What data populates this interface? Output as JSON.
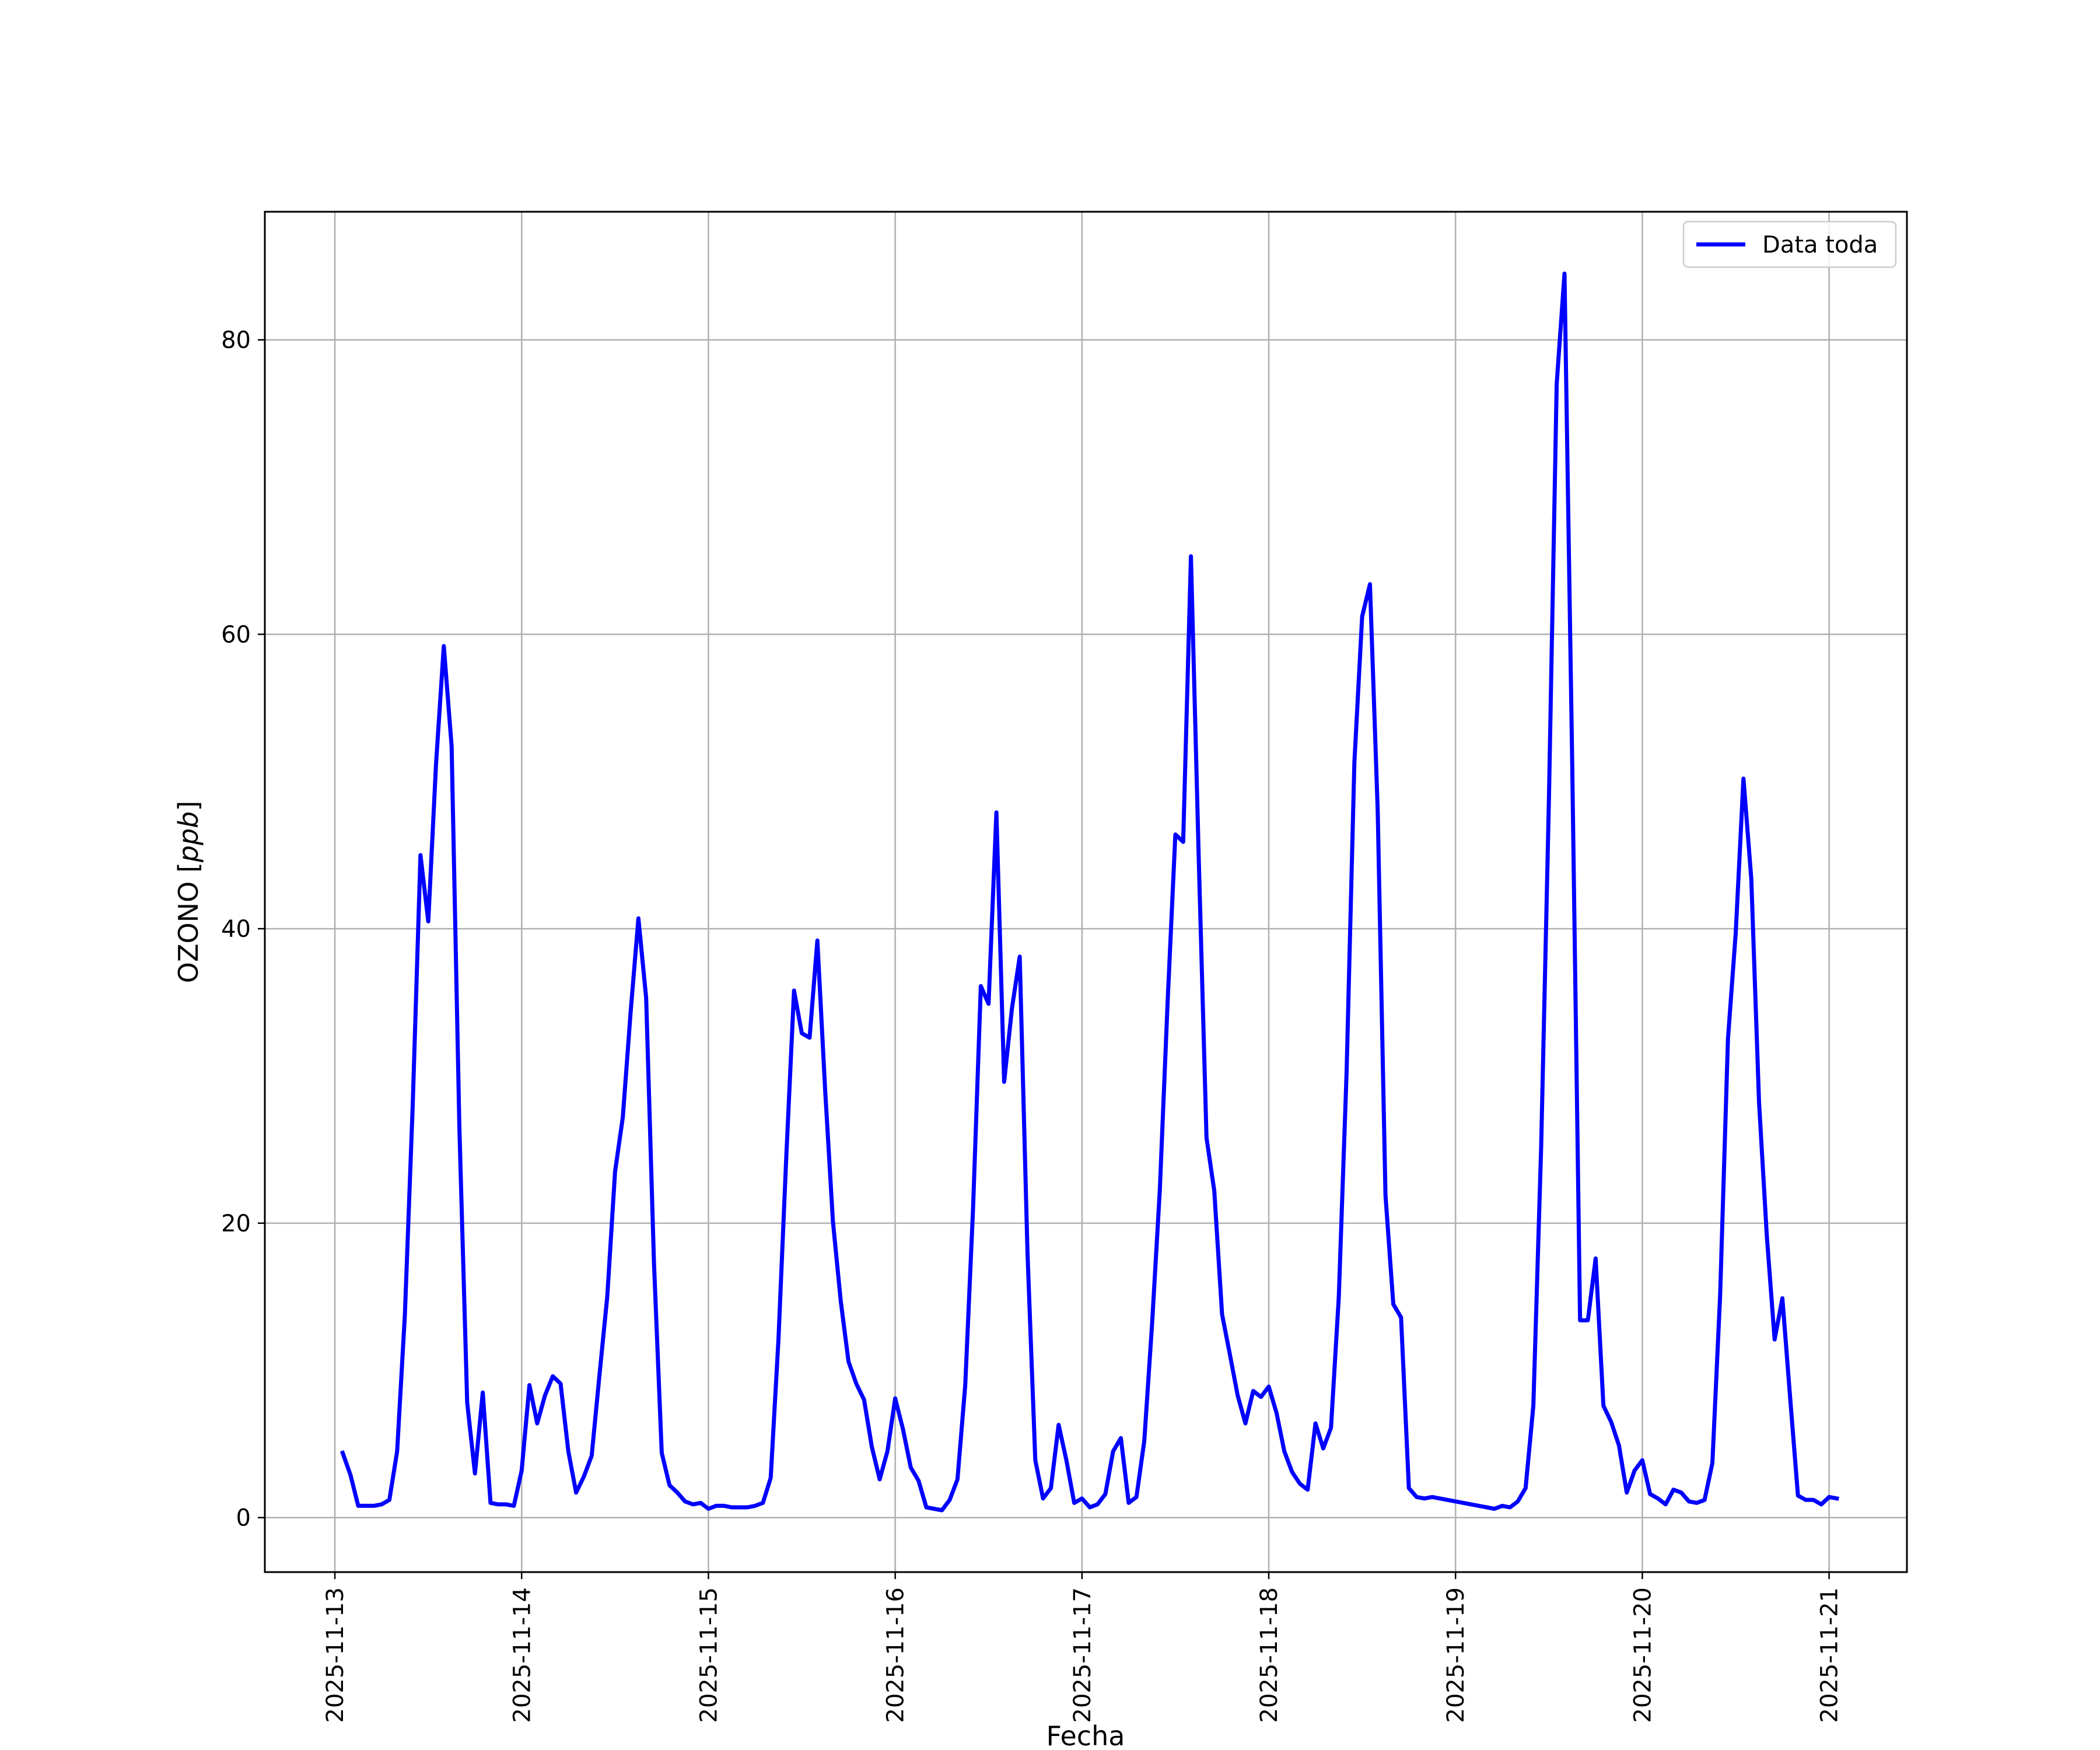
{
  "chart_data": {
    "type": "line",
    "title": "",
    "xlabel": "Fecha",
    "ylabel": "OZONO [ppb]",
    "ylabel_main": "OZONO [",
    "ylabel_unit": "ppb",
    "ylabel_close": "]",
    "ylim": [
      -3.7,
      88.7
    ],
    "xlim": [
      "2025-11-12T15:00",
      "2025-11-21T10:00"
    ],
    "grid": true,
    "legend_position": "top-right",
    "x_ticks": [
      "2025-11-13",
      "2025-11-14",
      "2025-11-15",
      "2025-11-16",
      "2025-11-17",
      "2025-11-18",
      "2025-11-19",
      "2025-11-20",
      "2025-11-21"
    ],
    "y_ticks": [
      0,
      20,
      40,
      60,
      80
    ],
    "series": [
      {
        "name": "Data toda",
        "color": "#0000ff",
        "points": [
          [
            "2025-11-13T01:00",
            4.4
          ],
          [
            "2025-11-13T02:00",
            2.9
          ],
          [
            "2025-11-13T03:00",
            0.8
          ],
          [
            "2025-11-13T04:00",
            0.8
          ],
          [
            "2025-11-13T05:00",
            0.8
          ],
          [
            "2025-11-13T06:00",
            0.9
          ],
          [
            "2025-11-13T07:00",
            1.2
          ],
          [
            "2025-11-13T08:00",
            4.5
          ],
          [
            "2025-11-13T09:00",
            13.8
          ],
          [
            "2025-11-13T10:00",
            28.0
          ],
          [
            "2025-11-13T11:00",
            45.0
          ],
          [
            "2025-11-13T12:00",
            40.5
          ],
          [
            "2025-11-13T13:00",
            51.2
          ],
          [
            "2025-11-13T14:00",
            59.2
          ],
          [
            "2025-11-13T15:00",
            52.4
          ],
          [
            "2025-11-13T16:00",
            26.5
          ],
          [
            "2025-11-13T17:00",
            7.8
          ],
          [
            "2025-11-13T18:00",
            3.0
          ],
          [
            "2025-11-13T19:00",
            8.5
          ],
          [
            "2025-11-13T20:00",
            1.0
          ],
          [
            "2025-11-13T21:00",
            0.9
          ],
          [
            "2025-11-13T22:00",
            0.9
          ],
          [
            "2025-11-13T23:00",
            0.8
          ],
          [
            "2025-11-14T00:00",
            3.2
          ],
          [
            "2025-11-14T01:00",
            9.0
          ],
          [
            "2025-11-14T02:00",
            6.4
          ],
          [
            "2025-11-14T03:00",
            8.3
          ],
          [
            "2025-11-14T04:00",
            9.6
          ],
          [
            "2025-11-14T05:00",
            9.1
          ],
          [
            "2025-11-14T06:00",
            4.5
          ],
          [
            "2025-11-14T07:00",
            1.7
          ],
          [
            "2025-11-14T08:00",
            2.8
          ],
          [
            "2025-11-14T09:00",
            4.2
          ],
          [
            "2025-11-14T10:00",
            9.7
          ],
          [
            "2025-11-14T11:00",
            15.0
          ],
          [
            "2025-11-14T12:00",
            23.5
          ],
          [
            "2025-11-14T13:00",
            27.2
          ],
          [
            "2025-11-14T14:00",
            34.3
          ],
          [
            "2025-11-14T15:00",
            40.7
          ],
          [
            "2025-11-14T16:00",
            35.3
          ],
          [
            "2025-11-14T17:00",
            17.3
          ],
          [
            "2025-11-14T18:00",
            4.4
          ],
          [
            "2025-11-14T19:00",
            2.2
          ],
          [
            "2025-11-14T20:00",
            1.7
          ],
          [
            "2025-11-14T21:00",
            1.1
          ],
          [
            "2025-11-14T22:00",
            0.9
          ],
          [
            "2025-11-14T23:00",
            1.0
          ],
          [
            "2025-11-15T00:00",
            0.6
          ],
          [
            "2025-11-15T01:00",
            0.8
          ],
          [
            "2025-11-15T02:00",
            0.8
          ],
          [
            "2025-11-15T03:00",
            0.7
          ],
          [
            "2025-11-15T04:00",
            0.7
          ],
          [
            "2025-11-15T05:00",
            0.7
          ],
          [
            "2025-11-15T06:00",
            0.8
          ],
          [
            "2025-11-15T07:00",
            1.0
          ],
          [
            "2025-11-15T08:00",
            2.7
          ],
          [
            "2025-11-15T09:00",
            12.1
          ],
          [
            "2025-11-15T10:00",
            24.5
          ],
          [
            "2025-11-15T11:00",
            35.8
          ],
          [
            "2025-11-15T12:00",
            32.9
          ],
          [
            "2025-11-15T13:00",
            32.6
          ],
          [
            "2025-11-15T14:00",
            39.2
          ],
          [
            "2025-11-15T15:00",
            29.0
          ],
          [
            "2025-11-15T16:00",
            20.1
          ],
          [
            "2025-11-15T17:00",
            14.7
          ],
          [
            "2025-11-15T18:00",
            10.6
          ],
          [
            "2025-11-15T19:00",
            9.1
          ],
          [
            "2025-11-15T20:00",
            8.0
          ],
          [
            "2025-11-15T21:00",
            4.8
          ],
          [
            "2025-11-15T22:00",
            2.6
          ],
          [
            "2025-11-15T23:00",
            4.5
          ],
          [
            "2025-11-16T00:00",
            8.1
          ],
          [
            "2025-11-16T01:00",
            6.0
          ],
          [
            "2025-11-16T02:00",
            3.4
          ],
          [
            "2025-11-16T03:00",
            2.5
          ],
          [
            "2025-11-16T04:00",
            0.7
          ],
          [
            "2025-11-16T05:00",
            0.6
          ],
          [
            "2025-11-16T06:00",
            0.5
          ],
          [
            "2025-11-16T07:00",
            1.2
          ],
          [
            "2025-11-16T08:00",
            2.6
          ],
          [
            "2025-11-16T09:00",
            9.0
          ],
          [
            "2025-11-16T10:00",
            21.0
          ],
          [
            "2025-11-16T11:00",
            36.1
          ],
          [
            "2025-11-16T12:00",
            34.9
          ],
          [
            "2025-11-16T13:00",
            47.9
          ],
          [
            "2025-11-16T14:00",
            29.6
          ],
          [
            "2025-11-16T15:00",
            34.6
          ],
          [
            "2025-11-16T16:00",
            38.1
          ],
          [
            "2025-11-16T17:00",
            18.0
          ],
          [
            "2025-11-16T18:00",
            3.9
          ],
          [
            "2025-11-16T19:00",
            1.3
          ],
          [
            "2025-11-16T20:00",
            2.0
          ],
          [
            "2025-11-16T21:00",
            6.3
          ],
          [
            "2025-11-16T22:00",
            3.9
          ],
          [
            "2025-11-16T23:00",
            1.0
          ],
          [
            "2025-11-17T00:00",
            1.3
          ],
          [
            "2025-11-17T01:00",
            0.7
          ],
          [
            "2025-11-17T02:00",
            0.9
          ],
          [
            "2025-11-17T03:00",
            1.6
          ],
          [
            "2025-11-17T04:00",
            4.5
          ],
          [
            "2025-11-17T05:00",
            5.4
          ],
          [
            "2025-11-17T06:00",
            1.0
          ],
          [
            "2025-11-17T07:00",
            1.4
          ],
          [
            "2025-11-17T08:00",
            5.2
          ],
          [
            "2025-11-17T09:00",
            13.1
          ],
          [
            "2025-11-17T10:00",
            22.2
          ],
          [
            "2025-11-17T11:00",
            35.0
          ],
          [
            "2025-11-17T12:00",
            46.4
          ],
          [
            "2025-11-17T13:00",
            45.9
          ],
          [
            "2025-11-17T14:00",
            65.3
          ],
          [
            "2025-11-17T15:00",
            44.9
          ],
          [
            "2025-11-17T16:00",
            25.8
          ],
          [
            "2025-11-17T17:00",
            22.2
          ],
          [
            "2025-11-17T18:00",
            13.8
          ],
          [
            "2025-11-17T19:00",
            11.1
          ],
          [
            "2025-11-17T20:00",
            8.3
          ],
          [
            "2025-11-17T21:00",
            6.4
          ],
          [
            "2025-11-17T22:00",
            8.6
          ],
          [
            "2025-11-17T23:00",
            8.2
          ],
          [
            "2025-11-18T00:00",
            8.9
          ],
          [
            "2025-11-18T01:00",
            7.1
          ],
          [
            "2025-11-18T02:00",
            4.5
          ],
          [
            "2025-11-18T03:00",
            3.1
          ],
          [
            "2025-11-18T04:00",
            2.3
          ],
          [
            "2025-11-18T05:00",
            1.9
          ],
          [
            "2025-11-18T06:00",
            6.4
          ],
          [
            "2025-11-18T07:00",
            4.7
          ],
          [
            "2025-11-18T08:00",
            6.1
          ],
          [
            "2025-11-18T09:00",
            15.0
          ],
          [
            "2025-11-18T10:00",
            30.2
          ],
          [
            "2025-11-18T11:00",
            51.3
          ],
          [
            "2025-11-18T12:00",
            61.2
          ],
          [
            "2025-11-18T13:00",
            63.4
          ],
          [
            "2025-11-18T14:00",
            48.0
          ],
          [
            "2025-11-18T15:00",
            21.9
          ],
          [
            "2025-11-18T16:00",
            14.5
          ],
          [
            "2025-11-18T17:00",
            13.6
          ],
          [
            "2025-11-18T18:00",
            2.0
          ],
          [
            "2025-11-18T19:00",
            1.4
          ],
          [
            "2025-11-18T20:00",
            1.3
          ],
          [
            "2025-11-18T21:00",
            1.4
          ],
          [
            "2025-11-19T05:00",
            0.6
          ],
          [
            "2025-11-19T06:00",
            0.8
          ],
          [
            "2025-11-19T07:00",
            0.7
          ],
          [
            "2025-11-19T08:00",
            1.1
          ],
          [
            "2025-11-19T09:00",
            2.0
          ],
          [
            "2025-11-19T10:00",
            7.6
          ],
          [
            "2025-11-19T11:00",
            25.2
          ],
          [
            "2025-11-19T12:00",
            48.8
          ],
          [
            "2025-11-19T13:00",
            77.0
          ],
          [
            "2025-11-19T14:00",
            84.5
          ],
          [
            "2025-11-19T15:00",
            51.0
          ],
          [
            "2025-11-19T16:00",
            13.4
          ],
          [
            "2025-11-19T17:00",
            13.4
          ],
          [
            "2025-11-19T18:00",
            17.6
          ],
          [
            "2025-11-19T19:00",
            7.6
          ],
          [
            "2025-11-19T20:00",
            6.5
          ],
          [
            "2025-11-19T21:00",
            4.9
          ],
          [
            "2025-11-19T22:00",
            1.7
          ],
          [
            "2025-11-19T23:00",
            3.2
          ],
          [
            "2025-11-20T00:00",
            3.9
          ],
          [
            "2025-11-20T01:00",
            1.6
          ],
          [
            "2025-11-20T02:00",
            1.3
          ],
          [
            "2025-11-20T03:00",
            0.9
          ],
          [
            "2025-11-20T04:00",
            1.9
          ],
          [
            "2025-11-20T05:00",
            1.7
          ],
          [
            "2025-11-20T06:00",
            1.1
          ],
          [
            "2025-11-20T07:00",
            1.0
          ],
          [
            "2025-11-20T08:00",
            1.2
          ],
          [
            "2025-11-20T09:00",
            3.7
          ],
          [
            "2025-11-20T10:00",
            15.1
          ],
          [
            "2025-11-20T11:00",
            32.5
          ],
          [
            "2025-11-20T12:00",
            39.7
          ],
          [
            "2025-11-20T13:00",
            50.2
          ],
          [
            "2025-11-20T14:00",
            43.4
          ],
          [
            "2025-11-20T15:00",
            28.2
          ],
          [
            "2025-11-20T16:00",
            19.1
          ],
          [
            "2025-11-20T17:00",
            12.1
          ],
          [
            "2025-11-20T18:00",
            14.9
          ],
          [
            "2025-11-20T19:00",
            8.1
          ],
          [
            "2025-11-20T20:00",
            1.5
          ],
          [
            "2025-11-20T21:00",
            1.2
          ],
          [
            "2025-11-20T22:00",
            1.2
          ],
          [
            "2025-11-20T23:00",
            0.9
          ],
          [
            "2025-11-21T00:00",
            1.4
          ],
          [
            "2025-11-21T01:00",
            1.3
          ]
        ]
      }
    ]
  }
}
